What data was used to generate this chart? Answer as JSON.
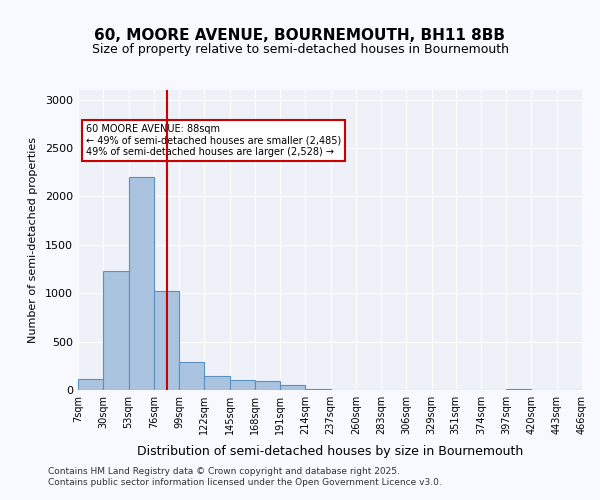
{
  "title_line1": "60, MOORE AVENUE, BOURNEMOUTH, BH11 8BB",
  "title_line2": "Size of property relative to semi-detached houses in Bournemouth",
  "xlabel": "Distribution of semi-detached houses by size in Bournemouth",
  "ylabel": "Number of semi-detached properties",
  "bins": [
    7,
    30,
    53,
    76,
    99,
    122,
    145,
    168,
    191,
    214,
    237,
    260,
    283,
    306,
    329,
    351,
    374,
    397,
    420,
    443,
    466
  ],
  "bar_heights": [
    110,
    1230,
    2200,
    1020,
    290,
    145,
    105,
    90,
    55,
    15,
    0,
    0,
    0,
    0,
    0,
    0,
    0,
    15,
    0,
    0
  ],
  "bar_color": "#aac4e0",
  "bar_edge_color": "#5a8fc4",
  "bg_color": "#eef2f8",
  "grid_color": "#ffffff",
  "vline_x": 88,
  "vline_color": "#cc0000",
  "annotation_text": "60 MOORE AVENUE: 88sqm\n← 49% of semi-detached houses are smaller (2,485)\n49% of semi-detached houses are larger (2,528) →",
  "annotation_box_color": "#ffffff",
  "annotation_box_edge": "#cc0000",
  "footer_text": "Contains HM Land Registry data © Crown copyright and database right 2025.\nContains public sector information licensed under the Open Government Licence v3.0.",
  "ylim": [
    0,
    3100
  ],
  "yticks": [
    0,
    500,
    1000,
    1500,
    2000,
    2500,
    3000
  ],
  "bin_labels": [
    "7sqm",
    "30sqm",
    "53sqm",
    "76sqm",
    "99sqm",
    "122sqm",
    "145sqm",
    "168sqm",
    "191sqm",
    "214sqm",
    "237sqm",
    "260sqm",
    "283sqm",
    "306sqm",
    "329sqm",
    "351sqm",
    "374sqm",
    "397sqm",
    "420sqm",
    "443sqm",
    "466sqm"
  ]
}
